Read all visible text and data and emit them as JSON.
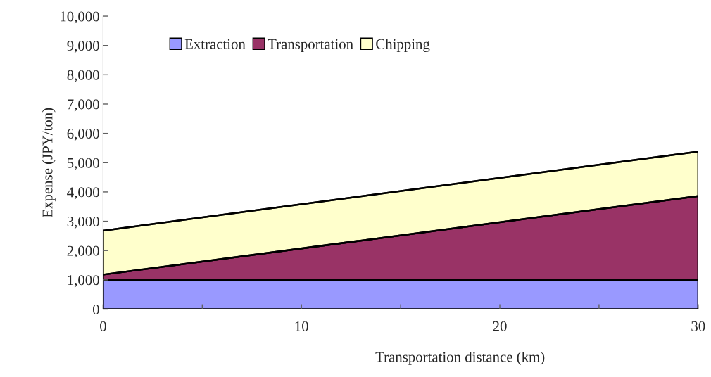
{
  "chart_data": {
    "type": "area",
    "stacked": true,
    "xlabel": "Transportation distance (km)",
    "ylabel": "Expense (JPY/ton)",
    "x": [
      0,
      30
    ],
    "series": [
      {
        "name": "Extraction",
        "color": "#9999ff",
        "values": [
          1000,
          1000
        ]
      },
      {
        "name": "Transportation",
        "color": "#993366",
        "values": [
          180,
          2860
        ]
      },
      {
        "name": "Chipping",
        "color": "#ffffcc",
        "values": [
          1500,
          1520
        ]
      }
    ],
    "xlim": [
      0,
      30
    ],
    "xticks": [
      0,
      {
        "value": 5,
        "label": null
      },
      10,
      {
        "value": 15,
        "label": null
      },
      20,
      {
        "value": 25,
        "label": null
      },
      30
    ],
    "ylim": [
      0,
      10000
    ],
    "yticks": [
      {
        "value": 0,
        "label": "0"
      },
      {
        "value": 1000,
        "label": "1,000"
      },
      {
        "value": 2000,
        "label": "2,000"
      },
      {
        "value": 3000,
        "label": "3,000"
      },
      {
        "value": 4000,
        "label": "4,000"
      },
      {
        "value": 5000,
        "label": "5,000"
      },
      {
        "value": 6000,
        "label": "6,000"
      },
      {
        "value": 7000,
        "label": "7,000"
      },
      {
        "value": 8000,
        "label": "8,000"
      },
      {
        "value": 9000,
        "label": "9,000"
      },
      {
        "value": 10000,
        "label": "10,000"
      }
    ],
    "legend": "top left"
  }
}
